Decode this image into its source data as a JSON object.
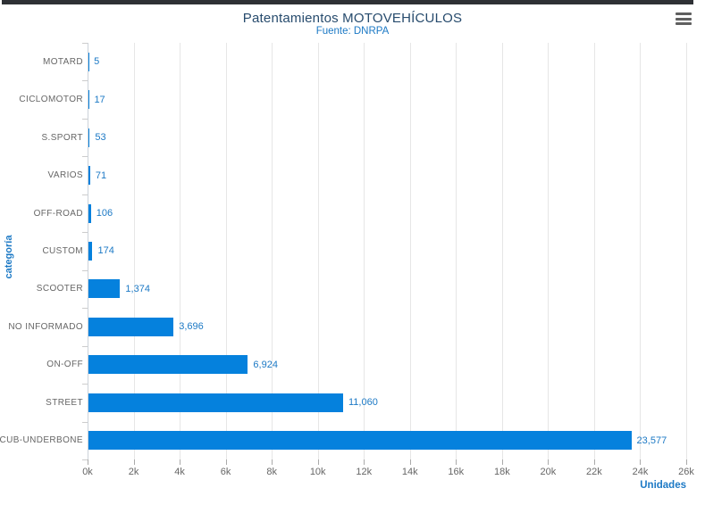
{
  "window": {
    "top_strip_color": "#2e3135"
  },
  "header": {
    "title": "Patentamientos MOTOVEHÍCULOS",
    "subtitle": "Fuente: DNRPA",
    "menu_icon": "hamburger-icon"
  },
  "axes": {
    "y_title": "categoría",
    "x_title": "Unidades"
  },
  "colors": {
    "bar": "#0581dd",
    "accent_text": "#1c79c5",
    "title_text": "#274b6d",
    "category_text": "#666666",
    "gridline": "#e6e6e6"
  },
  "chart_data": {
    "type": "bar",
    "orientation": "horizontal",
    "title": "Patentamientos MOTOVEHÍCULOS",
    "subtitle": "Fuente: DNRPA",
    "xlabel": "Unidades",
    "ylabel": "categoría",
    "categories": [
      "MOTARD",
      "CICLOMOTOR",
      "S.SPORT",
      "VARIOS",
      "OFF-ROAD",
      "CUSTOM",
      "SCOOTER",
      "NO INFORMADO",
      "ON-OFF",
      "STREET",
      "CUB-UNDERBONE"
    ],
    "values": [
      5,
      17,
      53,
      71,
      106,
      174,
      1374,
      3696,
      6924,
      11060,
      23577
    ],
    "value_labels": [
      "5",
      "17",
      "53",
      "71",
      "106",
      "174",
      "1,374",
      "3,696",
      "6,924",
      "11,060",
      "23,577"
    ],
    "x_ticks": [
      "0k",
      "2k",
      "4k",
      "6k",
      "8k",
      "10k",
      "12k",
      "14k",
      "16k",
      "18k",
      "20k",
      "22k",
      "24k",
      "26k"
    ],
    "xlim": [
      0,
      26000
    ],
    "grid": true,
    "legend": "none"
  }
}
